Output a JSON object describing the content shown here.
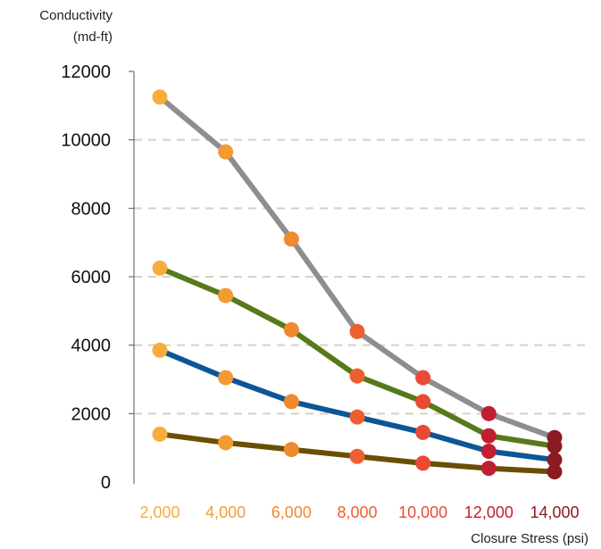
{
  "chart_data": {
    "type": "line",
    "ylabel": [
      "Conductivity",
      "(md-ft)"
    ],
    "xlabel": "Closure Stress (psi)",
    "x": [
      2000,
      4000,
      6000,
      8000,
      10000,
      12000,
      14000
    ],
    "x_tick_labels": [
      "2,000",
      "4,000",
      "6,000",
      "8,000",
      "10,000",
      "12,000",
      "14,000"
    ],
    "x_tick_colors": [
      "#f6ad3c",
      "#f39a33",
      "#f08a2f",
      "#ee5f2f",
      "#ea4a35",
      "#c01f32",
      "#8b1a23"
    ],
    "y_ticks": [
      0,
      2000,
      4000,
      6000,
      8000,
      10000,
      12000
    ],
    "y_tick_labels": [
      "0",
      "2000",
      "4000",
      "6000",
      "8000",
      "10000",
      "12000"
    ],
    "ylim": [
      0,
      12000
    ],
    "grid": true,
    "marker_colors": [
      "#f6ad3c",
      "#f39a33",
      "#f08a2f",
      "#ee5f2f",
      "#ea4a35",
      "#c01f32",
      "#8b1a23"
    ],
    "series": [
      {
        "color": "#8e8e91",
        "values": [
          11250,
          9650,
          7100,
          4400,
          3050,
          2000,
          1300
        ]
      },
      {
        "color": "#567a1b",
        "values": [
          6250,
          5450,
          4450,
          3100,
          2350,
          1350,
          1050
        ]
      },
      {
        "color": "#0d5696",
        "values": [
          3850,
          3050,
          2350,
          1900,
          1450,
          900,
          650
        ]
      },
      {
        "color": "#6b4e05",
        "values": [
          1400,
          1150,
          950,
          750,
          550,
          400,
          300
        ]
      }
    ]
  }
}
